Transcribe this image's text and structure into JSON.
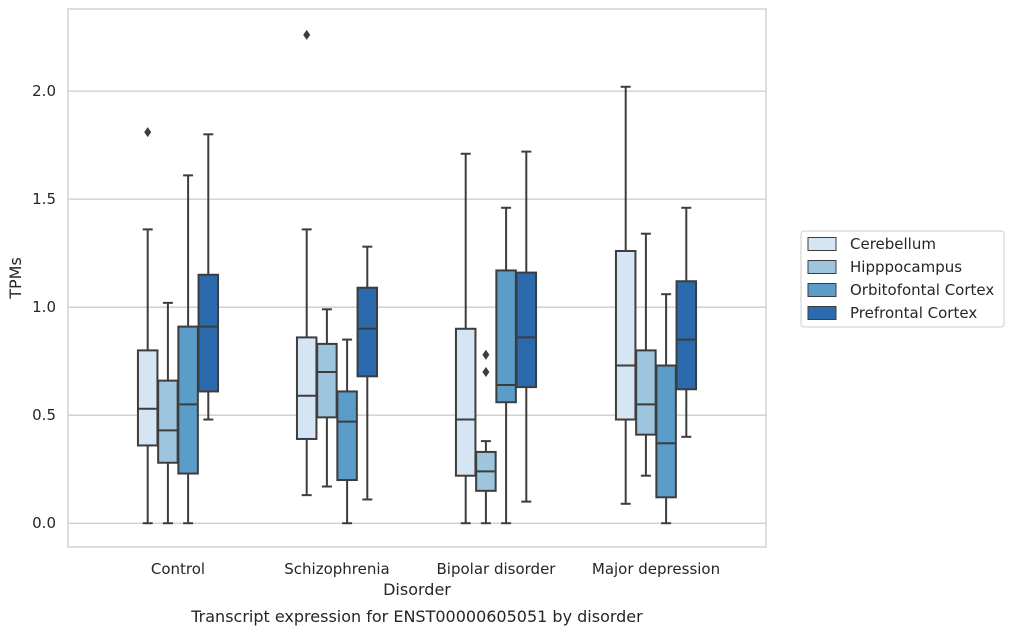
{
  "chart_data": {
    "type": "box",
    "xlabel": "Disorder",
    "ylabel": "TPMs",
    "caption": "Transcript expression for ENST00000605051 by disorder",
    "ylim": [
      -0.11,
      2.38
    ],
    "yticks": [
      0.0,
      0.5,
      1.0,
      1.5,
      2.0
    ],
    "ytick_labels": [
      "0.0",
      "0.5",
      "1.0",
      "1.5",
      "2.0"
    ],
    "grid": "horizontal",
    "legend_position": "right",
    "categories": [
      "Control",
      "Schizophrenia",
      "Bipolar disorder",
      "Major depression"
    ],
    "series": [
      {
        "name": "Cerebellum",
        "color": "#d6e5f4",
        "boxes": [
          {
            "whisker_low": 0.0,
            "q1": 0.36,
            "median": 0.53,
            "q3": 0.8,
            "whisker_high": 1.36,
            "outliers": [
              1.81
            ]
          },
          {
            "whisker_low": 0.13,
            "q1": 0.39,
            "median": 0.59,
            "q3": 0.86,
            "whisker_high": 1.36,
            "outliers": [
              2.26
            ]
          },
          {
            "whisker_low": 0.0,
            "q1": 0.22,
            "median": 0.48,
            "q3": 0.9,
            "whisker_high": 1.71,
            "outliers": []
          },
          {
            "whisker_low": 0.09,
            "q1": 0.48,
            "median": 0.73,
            "q3": 1.26,
            "whisker_high": 2.02,
            "outliers": []
          }
        ]
      },
      {
        "name": "Hipppocampus",
        "color": "#9dc5de",
        "boxes": [
          {
            "whisker_low": 0.0,
            "q1": 0.28,
            "median": 0.43,
            "q3": 0.66,
            "whisker_high": 1.02,
            "outliers": []
          },
          {
            "whisker_low": 0.17,
            "q1": 0.49,
            "median": 0.7,
            "q3": 0.83,
            "whisker_high": 0.99,
            "outliers": []
          },
          {
            "whisker_low": 0.0,
            "q1": 0.15,
            "median": 0.24,
            "q3": 0.33,
            "whisker_high": 0.38,
            "outliers": [
              0.7,
              0.78
            ]
          },
          {
            "whisker_low": 0.22,
            "q1": 0.41,
            "median": 0.55,
            "q3": 0.8,
            "whisker_high": 1.34,
            "outliers": []
          }
        ]
      },
      {
        "name": "Orbitofontal Cortex",
        "color": "#5a9dc9",
        "boxes": [
          {
            "whisker_low": 0.0,
            "q1": 0.23,
            "median": 0.55,
            "q3": 0.91,
            "whisker_high": 1.61,
            "outliers": []
          },
          {
            "whisker_low": 0.0,
            "q1": 0.2,
            "median": 0.47,
            "q3": 0.61,
            "whisker_high": 0.85,
            "outliers": []
          },
          {
            "whisker_low": 0.0,
            "q1": 0.56,
            "median": 0.64,
            "q3": 1.17,
            "whisker_high": 1.46,
            "outliers": []
          },
          {
            "whisker_low": 0.0,
            "q1": 0.12,
            "median": 0.37,
            "q3": 0.73,
            "whisker_high": 1.06,
            "outliers": []
          }
        ]
      },
      {
        "name": "Prefrontal Cortex",
        "color": "#2a6aad",
        "boxes": [
          {
            "whisker_low": 0.48,
            "q1": 0.61,
            "median": 0.91,
            "q3": 1.15,
            "whisker_high": 1.8,
            "outliers": []
          },
          {
            "whisker_low": 0.11,
            "q1": 0.68,
            "median": 0.9,
            "q3": 1.09,
            "whisker_high": 1.28,
            "outliers": []
          },
          {
            "whisker_low": 0.1,
            "q1": 0.63,
            "median": 0.86,
            "q3": 1.16,
            "whisker_high": 1.72,
            "outliers": []
          },
          {
            "whisker_low": 0.4,
            "q1": 0.62,
            "median": 0.85,
            "q3": 1.12,
            "whisker_high": 1.46,
            "outliers": []
          }
        ]
      }
    ]
  }
}
